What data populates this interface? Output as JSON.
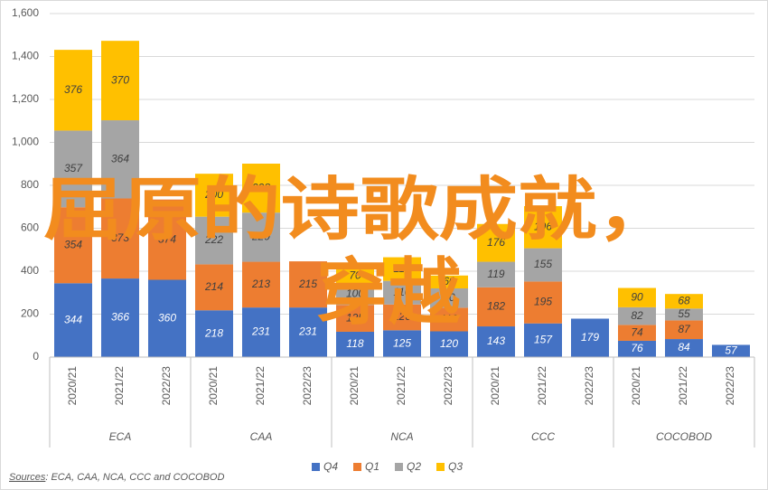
{
  "chart_data": {
    "type": "stacked_bar",
    "categories": [
      "2020/21",
      "2021/22",
      "2022/23",
      "2020/21",
      "2021/22",
      "2022/23",
      "2020/21",
      "2021/22",
      "2022/23",
      "2020/21",
      "2021/22",
      "2022/23",
      "2020/21",
      "2021/22",
      "2022/23"
    ],
    "groups": [
      "ECA",
      "CAA",
      "NCA",
      "CCC",
      "COCOBOD"
    ],
    "series": [
      {
        "name": "Q4",
        "color": "#4472c4",
        "values": [
          344,
          366,
          360,
          218,
          231,
          231,
          118,
          125,
          120,
          143,
          157,
          179,
          76,
          84,
          57
        ]
      },
      {
        "name": "Q1",
        "color": "#ed7d31",
        "values": [
          354,
          373,
          374,
          214,
          213,
          215,
          125,
          120,
          110,
          182,
          195,
          null,
          74,
          87,
          null
        ]
      },
      {
        "name": "Q2",
        "color": "#a5a5a5",
        "values": [
          357,
          364,
          null,
          222,
          229,
          null,
          100,
          110,
          90,
          119,
          155,
          null,
          82,
          55,
          null
        ]
      },
      {
        "name": "Q3",
        "color": "#ffc000",
        "values": [
          376,
          370,
          null,
          200,
          228,
          null,
          70,
          110,
          60,
          176,
          196,
          null,
          90,
          68,
          null
        ]
      }
    ],
    "ylim": [
      0,
      1600
    ],
    "yticks": [
      0,
      {
        "value": 200,
        "label": "200"
      },
      400,
      600,
      800,
      {
        "value": 1000,
        "label": "1,000"
      },
      {
        "value": 1200,
        "label": "1,200"
      },
      {
        "value": 1400,
        "label": "1,400"
      },
      {
        "value": 1600,
        "label": "1,600"
      }
    ],
    "grid": true,
    "legend": "bottom",
    "source_label": "Sources",
    "source_text": ": ECA, CAA, NCA, CCC and COCOBOD",
    "annotations": [
      "屈原的诗歌成就，",
      "穿越"
    ]
  }
}
